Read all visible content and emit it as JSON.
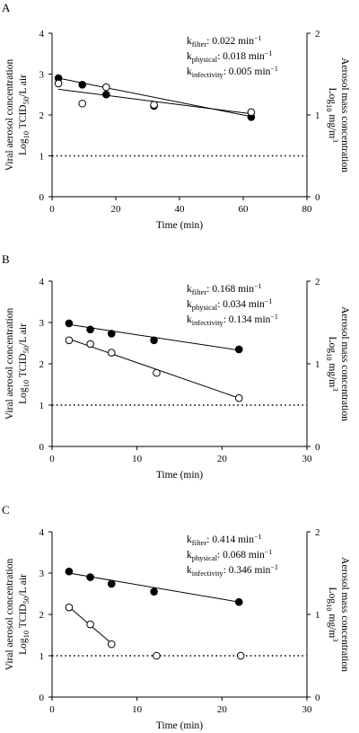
{
  "figure": {
    "panels": [
      {
        "letter": "A",
        "xlabel": "Time (min)",
        "ylabel_left": [
          "Viral aerosol concentration",
          "Log10 TCID50/L air"
        ],
        "ylabel_right": [
          "Aerosol mass concentration",
          "Log10 mg/m3"
        ],
        "annotations": [
          {
            "k": "k",
            "sub": "filter",
            "value": ": 0.022 min",
            "sup": "−1"
          },
          {
            "k": "k",
            "sub": "physical",
            "value": ": 0.018 min",
            "sup": "−1"
          },
          {
            "k": "k",
            "sub": "infectivity",
            "value": ": 0.005 min",
            "sup": "−1"
          }
        ]
      },
      {
        "letter": "B",
        "xlabel": "Time (min)",
        "ylabel_left": [
          "Viral aerosol concentration",
          "Log10 TCID50/L air"
        ],
        "ylabel_right": [
          "Aerosol mass concentration",
          "Log10 mg/m3"
        ],
        "annotations": [
          {
            "k": "k",
            "sub": "filter",
            "value": ": 0.168 min",
            "sup": "−1"
          },
          {
            "k": "k",
            "sub": "physical",
            "value": ": 0.034 min",
            "sup": "−1"
          },
          {
            "k": "k",
            "sub": "infectivity",
            "value": ": 0.134 min",
            "sup": "−1"
          }
        ]
      },
      {
        "letter": "C",
        "xlabel": "Time (min)",
        "ylabel_left": [
          "Viral aerosol concentration",
          "Log10 TCID50/L air"
        ],
        "ylabel_right": [
          "Aerosol mass concentration",
          "Log10 mg/m3"
        ],
        "annotations": [
          {
            "k": "k",
            "sub": "filter",
            "value": ": 0.414 min",
            "sup": "−1"
          },
          {
            "k": "k",
            "sub": "physical",
            "value": ": 0.068 min",
            "sup": "−1"
          },
          {
            "k": "k",
            "sub": "infectivity",
            "value": ": 0.346 min",
            "sup": "−1"
          }
        ]
      }
    ]
  },
  "chart_data": [
    {
      "type": "scatter",
      "xlabel": "Time (min)",
      "ylabel": "Viral aerosol concentration Log10 TCID50/L air",
      "y2label": "Aerosol mass concentration Log10 mg/m3",
      "xlim": [
        0,
        80
      ],
      "ylim": [
        0,
        4
      ],
      "y2lim": [
        0,
        2
      ],
      "xticks": [
        0,
        20,
        40,
        60,
        80
      ],
      "yticks": [
        0,
        1,
        2,
        3,
        4
      ],
      "y2ticks": [
        0,
        1,
        2
      ],
      "detection_limit": 1,
      "series": [
        {
          "marker": "filled",
          "points": [
            [
              2,
              2.9
            ],
            [
              9.5,
              2.74
            ],
            [
              17,
              2.5
            ],
            [
              32,
              2.22
            ],
            [
              62.5,
              1.95
            ]
          ],
          "fit": [
            [
              2,
              2.9
            ],
            [
              62.5,
              1.96
            ]
          ]
        },
        {
          "marker": "open",
          "points": [
            [
              2,
              2.77
            ],
            [
              9.5,
              2.28
            ],
            [
              17,
              2.68
            ],
            [
              32,
              2.25
            ],
            [
              62.5,
              2.07
            ]
          ],
          "fit": [
            [
              2,
              2.63
            ],
            [
              62.5,
              2.03
            ]
          ]
        }
      ],
      "grid": false
    },
    {
      "type": "scatter",
      "xlabel": "Time (min)",
      "ylabel": "Viral aerosol concentration Log10 TCID50/L air",
      "y2label": "Aerosol mass concentration Log10 mg/m3",
      "xlim": [
        0,
        30
      ],
      "ylim": [
        0,
        4
      ],
      "y2lim": [
        0,
        2
      ],
      "xticks": [
        0,
        10,
        20,
        30
      ],
      "yticks": [
        0,
        1,
        2,
        3,
        4
      ],
      "y2ticks": [
        0,
        1,
        2
      ],
      "detection_limit": 1,
      "series": [
        {
          "marker": "filled",
          "points": [
            [
              2,
              2.98
            ],
            [
              4.5,
              2.83
            ],
            [
              7,
              2.73
            ],
            [
              12,
              2.57
            ],
            [
              22,
              2.35
            ]
          ],
          "fit": [
            [
              2,
              2.95
            ],
            [
              22,
              2.33
            ]
          ]
        },
        {
          "marker": "open",
          "points": [
            [
              2,
              2.57
            ],
            [
              4.5,
              2.48
            ],
            [
              7,
              2.27
            ],
            [
              12.3,
              1.78
            ],
            [
              22,
              1.17
            ]
          ],
          "fit": [
            [
              2,
              2.6
            ],
            [
              22,
              1.17
            ]
          ]
        }
      ],
      "grid": false
    },
    {
      "type": "scatter",
      "xlabel": "Time (min)",
      "ylabel": "Viral aerosol concentration Log10 TCID50/L air",
      "y2label": "Aerosol mass concentration Log10 mg/m3",
      "xlim": [
        0,
        30
      ],
      "ylim": [
        0,
        4
      ],
      "y2lim": [
        0,
        2
      ],
      "xticks": [
        0,
        10,
        20,
        30
      ],
      "yticks": [
        0,
        1,
        2,
        3,
        4
      ],
      "y2ticks": [
        0,
        1,
        2
      ],
      "detection_limit": 1,
      "series": [
        {
          "marker": "filled",
          "points": [
            [
              2,
              3.04
            ],
            [
              4.5,
              2.9
            ],
            [
              7,
              2.74
            ],
            [
              12,
              2.55
            ],
            [
              22,
              2.3
            ]
          ],
          "fit": [
            [
              2,
              3.0
            ],
            [
              22,
              2.3
            ]
          ]
        },
        {
          "marker": "open",
          "points": [
            [
              2,
              2.17
            ],
            [
              4.5,
              1.76
            ],
            [
              7,
              1.28
            ],
            [
              12.3,
              1.0
            ],
            [
              22.2,
              1.0
            ]
          ],
          "fit": [
            [
              2,
              2.18
            ],
            [
              7,
              1.3
            ]
          ]
        }
      ],
      "grid": false
    }
  ]
}
